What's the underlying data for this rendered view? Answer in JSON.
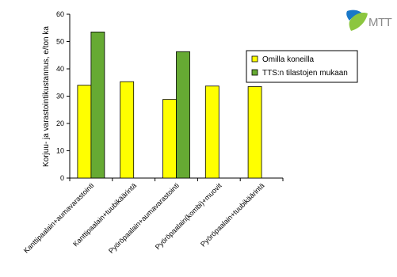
{
  "chart_data": {
    "type": "bar",
    "title": "",
    "xlabel": "",
    "ylabel": "Korjuu- ja varastointikustannus, e/ton ka",
    "ylim": [
      0,
      60
    ],
    "yticks": [
      0,
      10,
      20,
      30,
      40,
      50,
      60
    ],
    "grid": false,
    "legend_position": "right",
    "categories": [
      "Kanttipaalain+aumavarastointi",
      "Kanttipaalain+tuubikäärintä",
      "Pyöröpaalain+aumavarastointi",
      "Pyöröpaalain(kombi)+muovit",
      "Pyöröpaalain+tuubikäärintä"
    ],
    "series": [
      {
        "name": "Omilla koneilla",
        "color": "#ffff00",
        "values": [
          34,
          35.3,
          28.8,
          33.7,
          33.5
        ]
      },
      {
        "name": "TTS:n tilastojen mukaan",
        "color": "#66aa33",
        "values": [
          53.5,
          null,
          46.3,
          null,
          null
        ]
      }
    ]
  },
  "logo": {
    "text": "MTT",
    "icon": "mtt-leaf-logo"
  }
}
